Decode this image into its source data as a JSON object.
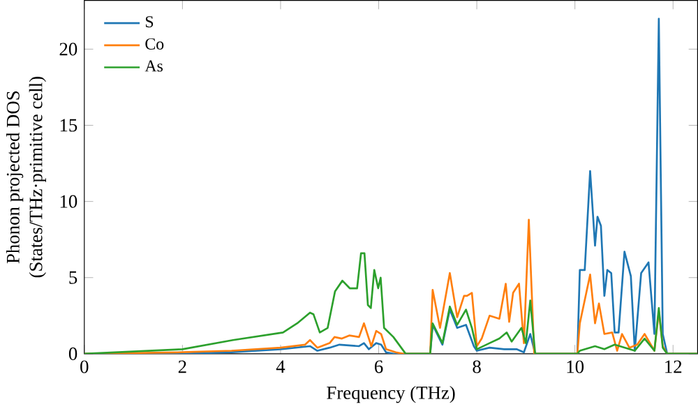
{
  "chart_data": {
    "type": "line",
    "xlabel": "Frequency (THz)",
    "ylabel": "Phonon projected DOS\n(States/THz·primitive cell)",
    "xlim": [
      0,
      12.5
    ],
    "ylim": [
      0,
      23.2
    ],
    "xticks": [
      0,
      2,
      4,
      6,
      8,
      10,
      12
    ],
    "yticks": [
      0,
      5,
      10,
      15,
      20
    ],
    "legend": "top left",
    "grid": false,
    "series": [
      {
        "name": "S",
        "color": "#1f77b4",
        "x": [
          0,
          2,
          3,
          4,
          4.6,
          4.75,
          5,
          5.2,
          5.6,
          5.7,
          5.8,
          5.95,
          6.05,
          6.15,
          6.3,
          7.05,
          7.1,
          7.3,
          7.45,
          7.6,
          7.78,
          7.94,
          8.0,
          8.26,
          8.56,
          8.81,
          8.96,
          9.09,
          9.19,
          10.05,
          10.1,
          10.2,
          10.31,
          10.41,
          10.46,
          10.53,
          10.6,
          10.66,
          10.74,
          10.81,
          10.89,
          11.01,
          11.14,
          11.22,
          11.35,
          11.5,
          11.62,
          11.71,
          11.79,
          11.88,
          12.5
        ],
        "values": [
          0,
          0.0,
          0.1,
          0.3,
          0.5,
          0.2,
          0.4,
          0.6,
          0.5,
          0.7,
          0.3,
          0.7,
          0.6,
          0.1,
          0,
          0,
          1.9,
          0.6,
          2.9,
          1.7,
          1.9,
          0.5,
          0.2,
          0.4,
          0.3,
          0.3,
          0.1,
          1.3,
          0,
          0,
          5.5,
          5.5,
          12,
          7.1,
          9.0,
          8.4,
          3.8,
          5.5,
          5.3,
          1.4,
          1.4,
          6.7,
          5.1,
          0.2,
          5.3,
          6.0,
          1.3,
          22,
          1.3,
          0,
          0
        ]
      },
      {
        "name": "Co",
        "color": "#ff7f0e",
        "x": [
          0,
          2,
          3,
          4,
          4.5,
          4.6,
          4.75,
          5,
          5.1,
          5.25,
          5.4,
          5.6,
          5.7,
          5.8,
          5.85,
          5.95,
          6.05,
          6.15,
          6.35,
          6.5,
          7.05,
          7.1,
          7.25,
          7.45,
          7.6,
          7.74,
          7.8,
          7.9,
          8.0,
          8.1,
          8.26,
          8.46,
          8.59,
          8.66,
          8.74,
          8.86,
          8.96,
          9.06,
          9.17,
          10.05,
          10.1,
          10.31,
          10.41,
          10.49,
          10.6,
          10.76,
          10.86,
          10.96,
          11.11,
          11.27,
          11.42,
          11.62,
          11.71,
          11.79,
          11.88,
          12.5
        ],
        "values": [
          0,
          0.1,
          0.2,
          0.4,
          0.6,
          0.9,
          0.4,
          0.7,
          1.1,
          1.0,
          1.2,
          1.1,
          2.0,
          1.0,
          0.5,
          1.5,
          1.3,
          0.3,
          0.1,
          0,
          0,
          4.2,
          1.7,
          5.3,
          2.4,
          3.8,
          3.8,
          4.0,
          0.5,
          1.0,
          2.5,
          2.3,
          4.6,
          2.1,
          4.0,
          4.6,
          0.7,
          8.8,
          0,
          0,
          2.0,
          5.2,
          2.0,
          3.3,
          1.3,
          1.4,
          0.2,
          1.3,
          0.4,
          0.6,
          1.3,
          0.2,
          2.8,
          0.5,
          0,
          0
        ]
      },
      {
        "name": "As",
        "color": "#2ca02c",
        "x": [
          0,
          2,
          3.03,
          4.05,
          4.34,
          4.6,
          4.67,
          4.8,
          4.96,
          5.11,
          5.26,
          5.41,
          5.56,
          5.64,
          5.71,
          5.78,
          5.84,
          5.91,
          5.99,
          6.04,
          6.11,
          6.3,
          6.55,
          7.05,
          7.1,
          7.3,
          7.45,
          7.6,
          7.78,
          7.9,
          8.0,
          8.26,
          8.46,
          8.61,
          8.71,
          8.91,
          9.0,
          9.09,
          9.19,
          10.05,
          10.1,
          10.41,
          10.6,
          10.81,
          11.22,
          11.42,
          11.62,
          11.71,
          11.79,
          11.88,
          12.5
        ],
        "values": [
          0,
          0.3,
          0.9,
          1.4,
          2.0,
          2.7,
          2.6,
          1.4,
          1.7,
          4.1,
          4.8,
          4.3,
          4.3,
          6.6,
          6.6,
          3.2,
          3.0,
          5.5,
          4.3,
          5.0,
          1.7,
          1.1,
          0,
          0,
          2.0,
          0.7,
          3.1,
          1.9,
          2.9,
          1.7,
          0.3,
          0.7,
          1.0,
          1.4,
          0.8,
          1.7,
          0.7,
          3.5,
          0,
          0,
          0.2,
          0.5,
          0.3,
          0.6,
          0.2,
          1.0,
          0.2,
          3.0,
          0.4,
          0,
          0
        ]
      }
    ]
  }
}
